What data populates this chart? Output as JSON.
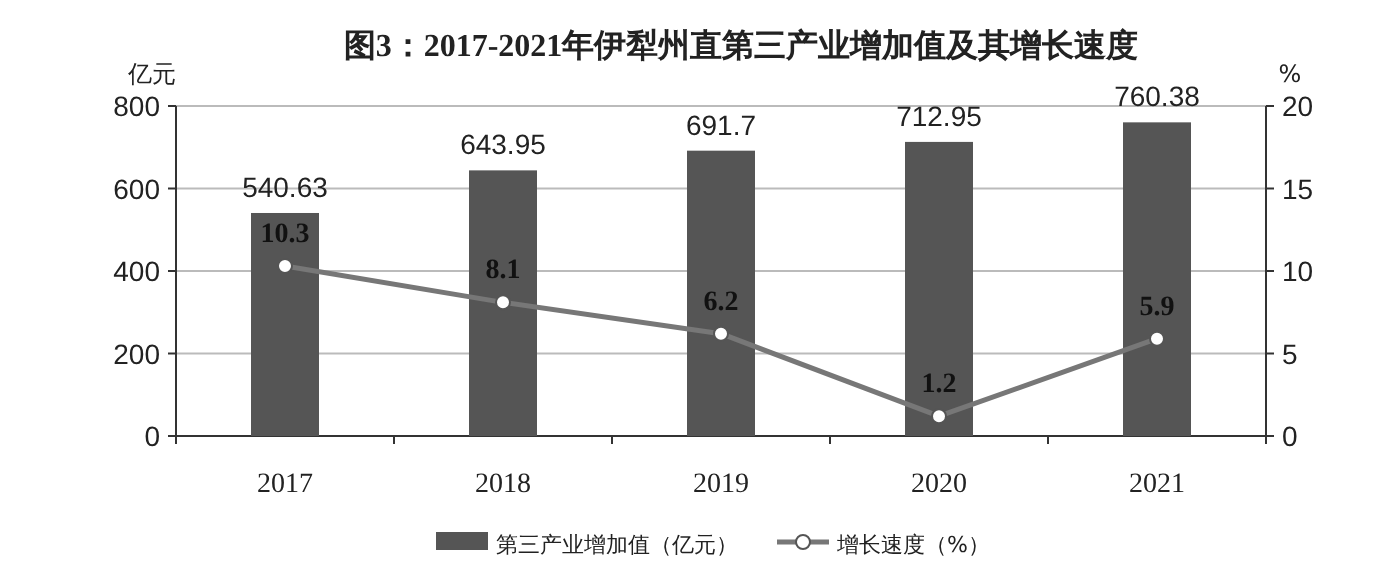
{
  "chart_data": {
    "type": "bar",
    "title": "图3：2017-2021年伊犁州直第三产业增加值及其增长速度",
    "categories": [
      "2017",
      "2018",
      "2019",
      "2020",
      "2021"
    ],
    "series": [
      {
        "name": "第三产业增加值（亿元）",
        "color": "#555555",
        "values": [
          540.63,
          643.95,
          691.7,
          712.95,
          760.38
        ]
      },
      {
        "name": "增长速度（%）",
        "type": "line",
        "axis": "y2",
        "color": "#777777",
        "marker": "circle",
        "values": [
          10.3,
          8.1,
          6.2,
          1.2,
          5.9
        ]
      }
    ],
    "ylabel": "亿元",
    "y2label": "%",
    "ylim": [
      0,
      800
    ],
    "yticks": [
      0,
      200,
      400,
      600,
      800
    ],
    "y2lim": [
      0,
      20
    ],
    "y2ticks": [
      0,
      5,
      10,
      15,
      20
    ],
    "grid": "y",
    "legend": "bottom",
    "data_labels": true
  }
}
